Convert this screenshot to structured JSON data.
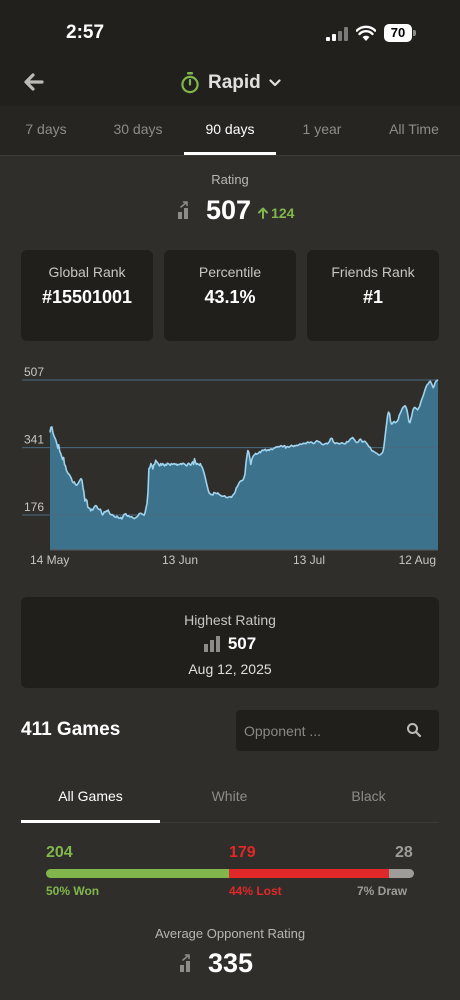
{
  "status_bar": {
    "time": "2:57",
    "battery": "70"
  },
  "header": {
    "mode_label": "Rapid"
  },
  "periods": [
    {
      "label": "7 days"
    },
    {
      "label": "30 days"
    },
    {
      "label": "90 days",
      "active": true
    },
    {
      "label": "1 year"
    },
    {
      "label": "All Time"
    }
  ],
  "rating": {
    "label": "Rating",
    "value": "507",
    "delta": "124"
  },
  "stats": [
    {
      "label": "Global Rank",
      "value": "#15501001"
    },
    {
      "label": "Percentile",
      "value": "43.1%"
    },
    {
      "label": "Friends Rank",
      "value": "#1"
    }
  ],
  "chart_data": {
    "type": "area",
    "y_ticks": [
      "507",
      "341",
      "176"
    ],
    "x_ticks": [
      "14 May",
      "13 Jun",
      "13 Jul",
      "12 Aug"
    ],
    "ylim": [
      90,
      507
    ],
    "grid": true,
    "colors": {
      "fill": "#3c728c",
      "line": "#9fd3ee",
      "grid": "#4a6a80"
    },
    "points": [
      [
        0,
        380
      ],
      [
        1,
        391
      ],
      [
        2,
        392
      ],
      [
        3,
        378
      ],
      [
        4,
        370
      ],
      [
        5,
        365
      ],
      [
        6,
        360
      ],
      [
        7,
        351
      ],
      [
        8,
        340
      ],
      [
        9,
        348
      ],
      [
        10,
        332
      ],
      [
        11,
        327
      ],
      [
        12,
        320
      ],
      [
        13,
        312
      ],
      [
        14,
        317
      ],
      [
        15,
        300
      ],
      [
        16,
        296
      ],
      [
        17,
        285
      ],
      [
        18,
        280
      ],
      [
        19,
        277
      ],
      [
        20,
        275
      ],
      [
        21,
        270
      ],
      [
        22,
        266
      ],
      [
        23,
        258
      ],
      [
        24,
        255
      ],
      [
        25,
        257
      ],
      [
        26,
        252
      ],
      [
        27,
        249
      ],
      [
        28,
        250
      ],
      [
        29,
        253
      ],
      [
        30,
        258
      ],
      [
        31,
        262
      ],
      [
        32,
        265
      ],
      [
        33,
        261
      ],
      [
        34,
        243
      ],
      [
        35,
        232
      ],
      [
        36,
        210
      ],
      [
        37,
        214
      ],
      [
        38,
        212
      ],
      [
        39,
        195
      ],
      [
        40,
        193
      ],
      [
        41,
        192
      ],
      [
        42,
        186
      ],
      [
        43,
        190
      ],
      [
        44,
        188
      ],
      [
        45,
        193
      ],
      [
        46,
        197
      ],
      [
        47,
        199
      ],
      [
        48,
        198
      ],
      [
        49,
        193
      ],
      [
        50,
        190
      ],
      [
        51,
        189
      ],
      [
        52,
        190
      ],
      [
        53,
        183
      ],
      [
        54,
        176
      ],
      [
        55,
        178
      ],
      [
        56,
        184
      ],
      [
        57,
        183
      ],
      [
        58,
        186
      ],
      [
        59,
        185
      ],
      [
        60,
        188
      ],
      [
        61,
        182
      ],
      [
        62,
        178
      ],
      [
        63,
        176
      ],
      [
        64,
        177
      ],
      [
        65,
        175
      ],
      [
        66,
        173
      ],
      [
        67,
        171
      ],
      [
        68,
        170
      ],
      [
        69,
        173
      ],
      [
        70,
        171
      ],
      [
        71,
        168
      ],
      [
        72,
        168
      ],
      [
        73,
        170
      ],
      [
        74,
        166
      ],
      [
        75,
        171
      ],
      [
        76,
        176
      ],
      [
        77,
        178
      ],
      [
        78,
        179
      ],
      [
        79,
        175
      ],
      [
        80,
        173
      ],
      [
        81,
        174
      ],
      [
        82,
        172
      ],
      [
        83,
        171
      ],
      [
        84,
        172
      ],
      [
        85,
        170
      ],
      [
        86,
        168
      ],
      [
        87,
        167
      ],
      [
        88,
        169
      ],
      [
        89,
        170
      ],
      [
        90,
        172
      ],
      [
        91,
        175
      ],
      [
        92,
        179
      ],
      [
        93,
        180
      ],
      [
        94,
        180
      ],
      [
        95,
        178
      ],
      [
        96,
        177
      ],
      [
        97,
        175
      ],
      [
        98,
        182
      ],
      [
        99,
        193
      ],
      [
        100,
        204
      ],
      [
        101,
        232
      ],
      [
        102,
        290
      ],
      [
        103,
        292
      ],
      [
        104,
        302
      ],
      [
        105,
        297
      ],
      [
        106,
        289
      ],
      [
        107,
        299
      ],
      [
        108,
        301
      ],
      [
        109,
        310
      ],
      [
        110,
        306
      ],
      [
        111,
        304
      ],
      [
        112,
        300
      ],
      [
        113,
        296
      ],
      [
        114,
        302
      ],
      [
        115,
        298
      ],
      [
        116,
        302
      ],
      [
        117,
        300
      ],
      [
        118,
        296
      ],
      [
        119,
        300
      ],
      [
        120,
        298
      ],
      [
        121,
        303
      ],
      [
        122,
        302
      ],
      [
        123,
        300
      ],
      [
        124,
        298
      ],
      [
        125,
        302
      ],
      [
        126,
        300
      ],
      [
        127,
        301
      ],
      [
        128,
        302
      ],
      [
        129,
        300
      ],
      [
        130,
        301
      ],
      [
        131,
        298
      ],
      [
        132,
        300
      ],
      [
        133,
        299
      ],
      [
        134,
        301
      ],
      [
        135,
        302
      ],
      [
        136,
        300
      ],
      [
        137,
        303
      ],
      [
        138,
        302
      ],
      [
        139,
        300
      ],
      [
        140,
        298
      ],
      [
        141,
        296
      ],
      [
        142,
        301
      ],
      [
        143,
        303
      ],
      [
        144,
        300
      ],
      [
        145,
        298
      ],
      [
        146,
        302
      ],
      [
        147,
        306
      ],
      [
        148,
        300
      ],
      [
        149,
        314
      ],
      [
        150,
        305
      ],
      [
        151,
        300
      ],
      [
        152,
        302
      ],
      [
        153,
        300
      ],
      [
        154,
        298
      ],
      [
        155,
        302
      ],
      [
        156,
        296
      ],
      [
        157,
        292
      ],
      [
        158,
        285
      ],
      [
        159,
        278
      ],
      [
        160,
        268
      ],
      [
        161,
        257
      ],
      [
        162,
        248
      ],
      [
        163,
        238
      ],
      [
        164,
        230
      ],
      [
        165,
        228
      ],
      [
        166,
        226
      ],
      [
        167,
        226
      ],
      [
        168,
        225
      ],
      [
        169,
        231
      ],
      [
        170,
        230
      ],
      [
        171,
        229
      ],
      [
        172,
        228
      ],
      [
        173,
        230
      ],
      [
        174,
        227
      ],
      [
        175,
        225
      ],
      [
        176,
        224
      ],
      [
        177,
        222
      ],
      [
        178,
        222
      ],
      [
        179,
        222
      ],
      [
        180,
        223
      ],
      [
        181,
        220
      ],
      [
        182,
        219
      ],
      [
        183,
        218
      ],
      [
        184,
        220
      ],
      [
        185,
        220
      ],
      [
        186,
        221
      ],
      [
        187,
        219
      ],
      [
        188,
        223
      ],
      [
        189,
        226
      ],
      [
        190,
        228
      ],
      [
        191,
        233
      ],
      [
        192,
        242
      ],
      [
        193,
        245
      ],
      [
        194,
        250
      ],
      [
        195,
        255
      ],
      [
        196,
        258
      ],
      [
        197,
        260
      ],
      [
        198,
        260
      ],
      [
        199,
        262
      ],
      [
        200,
        268
      ],
      [
        201,
        276
      ],
      [
        202,
        302
      ],
      [
        203,
        320
      ],
      [
        204,
        334
      ],
      [
        205,
        330
      ],
      [
        206,
        316
      ],
      [
        207,
        300
      ],
      [
        208,
        312
      ],
      [
        209,
        318
      ],
      [
        210,
        322
      ],
      [
        211,
        324
      ],
      [
        212,
        327
      ],
      [
        213,
        325
      ],
      [
        214,
        326
      ],
      [
        215,
        328
      ],
      [
        216,
        331
      ],
      [
        217,
        329
      ],
      [
        218,
        333
      ],
      [
        219,
        335
      ],
      [
        220,
        334
      ],
      [
        221,
        336
      ],
      [
        222,
        337
      ],
      [
        223,
        333
      ],
      [
        224,
        335
      ],
      [
        225,
        336
      ],
      [
        226,
        334
      ],
      [
        227,
        337
      ],
      [
        228,
        338
      ],
      [
        229,
        336
      ],
      [
        230,
        338
      ],
      [
        231,
        340
      ],
      [
        232,
        341
      ],
      [
        233,
        343
      ],
      [
        234,
        342
      ],
      [
        235,
        344
      ],
      [
        236,
        343
      ],
      [
        237,
        344
      ],
      [
        238,
        346
      ],
      [
        239,
        345
      ],
      [
        240,
        343
      ],
      [
        241,
        345
      ],
      [
        242,
        346
      ],
      [
        243,
        340
      ],
      [
        244,
        343
      ],
      [
        245,
        344
      ],
      [
        246,
        342
      ],
      [
        247,
        343
      ],
      [
        248,
        345
      ],
      [
        249,
        347
      ],
      [
        250,
        345
      ],
      [
        251,
        344
      ],
      [
        252,
        346
      ],
      [
        253,
        345
      ],
      [
        254,
        347
      ],
      [
        255,
        346
      ],
      [
        256,
        347
      ],
      [
        257,
        349
      ],
      [
        258,
        350
      ],
      [
        259,
        349
      ],
      [
        260,
        350
      ],
      [
        261,
        352
      ],
      [
        262,
        351
      ],
      [
        263,
        352
      ],
      [
        264,
        351
      ],
      [
        265,
        354
      ],
      [
        266,
        355
      ],
      [
        267,
        353
      ],
      [
        268,
        354
      ],
      [
        269,
        355
      ],
      [
        270,
        354
      ],
      [
        271,
        352
      ],
      [
        272,
        351
      ],
      [
        273,
        353
      ],
      [
        274,
        356
      ],
      [
        275,
        358
      ],
      [
        276,
        357
      ],
      [
        277,
        356
      ],
      [
        278,
        355
      ],
      [
        279,
        353
      ],
      [
        280,
        350
      ],
      [
        281,
        349
      ],
      [
        282,
        348
      ],
      [
        283,
        350
      ],
      [
        284,
        351
      ],
      [
        285,
        352
      ],
      [
        286,
        350
      ],
      [
        287,
        353
      ],
      [
        288,
        356
      ],
      [
        289,
        362
      ],
      [
        290,
        364
      ],
      [
        291,
        363
      ],
      [
        292,
        356
      ],
      [
        293,
        353
      ],
      [
        294,
        351
      ],
      [
        295,
        353
      ],
      [
        296,
        352
      ],
      [
        297,
        352
      ],
      [
        298,
        350
      ],
      [
        299,
        351
      ],
      [
        300,
        352
      ],
      [
        301,
        353
      ],
      [
        302,
        352
      ],
      [
        303,
        351
      ],
      [
        304,
        350
      ],
      [
        305,
        352
      ],
      [
        306,
        356
      ],
      [
        307,
        355
      ],
      [
        308,
        357
      ],
      [
        309,
        360
      ],
      [
        310,
        363
      ],
      [
        311,
        364
      ],
      [
        312,
        366
      ],
      [
        313,
        363
      ],
      [
        314,
        360
      ],
      [
        315,
        356
      ],
      [
        316,
        354
      ],
      [
        317,
        354
      ],
      [
        318,
        356
      ],
      [
        319,
        360
      ],
      [
        320,
        362
      ],
      [
        321,
        359
      ],
      [
        322,
        355
      ],
      [
        323,
        356
      ],
      [
        324,
        357
      ],
      [
        325,
        356
      ],
      [
        326,
        353
      ],
      [
        327,
        350
      ],
      [
        328,
        346
      ],
      [
        329,
        343
      ],
      [
        330,
        342
      ],
      [
        331,
        337
      ],
      [
        332,
        333
      ],
      [
        333,
        333
      ],
      [
        334,
        331
      ],
      [
        335,
        330
      ],
      [
        336,
        328
      ],
      [
        337,
        327
      ],
      [
        338,
        325
      ],
      [
        339,
        323
      ],
      [
        340,
        323
      ],
      [
        341,
        325
      ],
      [
        342,
        327
      ],
      [
        343,
        330
      ],
      [
        344,
        340
      ],
      [
        345,
        360
      ],
      [
        346,
        380
      ],
      [
        347,
        400
      ],
      [
        348,
        420
      ],
      [
        349,
        428
      ],
      [
        350,
        425
      ],
      [
        351,
        406
      ],
      [
        352,
        399
      ],
      [
        353,
        400
      ],
      [
        354,
        404
      ],
      [
        355,
        405
      ],
      [
        356,
        402
      ],
      [
        357,
        404
      ],
      [
        358,
        406
      ],
      [
        359,
        410
      ],
      [
        360,
        420
      ],
      [
        361,
        425
      ],
      [
        362,
        430
      ],
      [
        363,
        436
      ],
      [
        364,
        440
      ],
      [
        365,
        442
      ],
      [
        366,
        444
      ],
      [
        367,
        440
      ],
      [
        368,
        433
      ],
      [
        369,
        421
      ],
      [
        370,
        405
      ],
      [
        371,
        402
      ],
      [
        372,
        410
      ],
      [
        373,
        420
      ],
      [
        374,
        432
      ],
      [
        375,
        438
      ],
      [
        376,
        440
      ],
      [
        377,
        438
      ],
      [
        378,
        436
      ],
      [
        379,
        434
      ],
      [
        380,
        438
      ],
      [
        381,
        442
      ],
      [
        382,
        450
      ],
      [
        383,
        458
      ],
      [
        384,
        464
      ],
      [
        385,
        470
      ],
      [
        386,
        478
      ],
      [
        387,
        486
      ],
      [
        388,
        492
      ],
      [
        389,
        496
      ],
      [
        390,
        498
      ],
      [
        391,
        502
      ],
      [
        392,
        504
      ],
      [
        393,
        500
      ],
      [
        394,
        494
      ],
      [
        395,
        488
      ],
      [
        396,
        492
      ],
      [
        397,
        500
      ],
      [
        398,
        504
      ],
      [
        399,
        506
      ],
      [
        400,
        507
      ]
    ]
  },
  "highest": {
    "label": "Highest Rating",
    "value": "507",
    "date": "Aug 12, 2025"
  },
  "games": {
    "count_label": "411 Games",
    "search_placeholder": "Opponent ..."
  },
  "color_tabs": [
    {
      "label": "All Games",
      "active": true
    },
    {
      "label": "White"
    },
    {
      "label": "Black"
    }
  ],
  "results": {
    "won": {
      "count": "204",
      "pct": "50% Won",
      "color": "#81b64c",
      "share": 0.496
    },
    "lost": {
      "count": "179",
      "pct": "44% Lost",
      "color": "#e02828",
      "share": 0.436
    },
    "draw": {
      "count": "28",
      "pct": "7% Draw",
      "color": "#9e9c98",
      "share": 0.068
    }
  },
  "avg_opponent": {
    "label": "Average Opponent Rating",
    "value": "335"
  }
}
